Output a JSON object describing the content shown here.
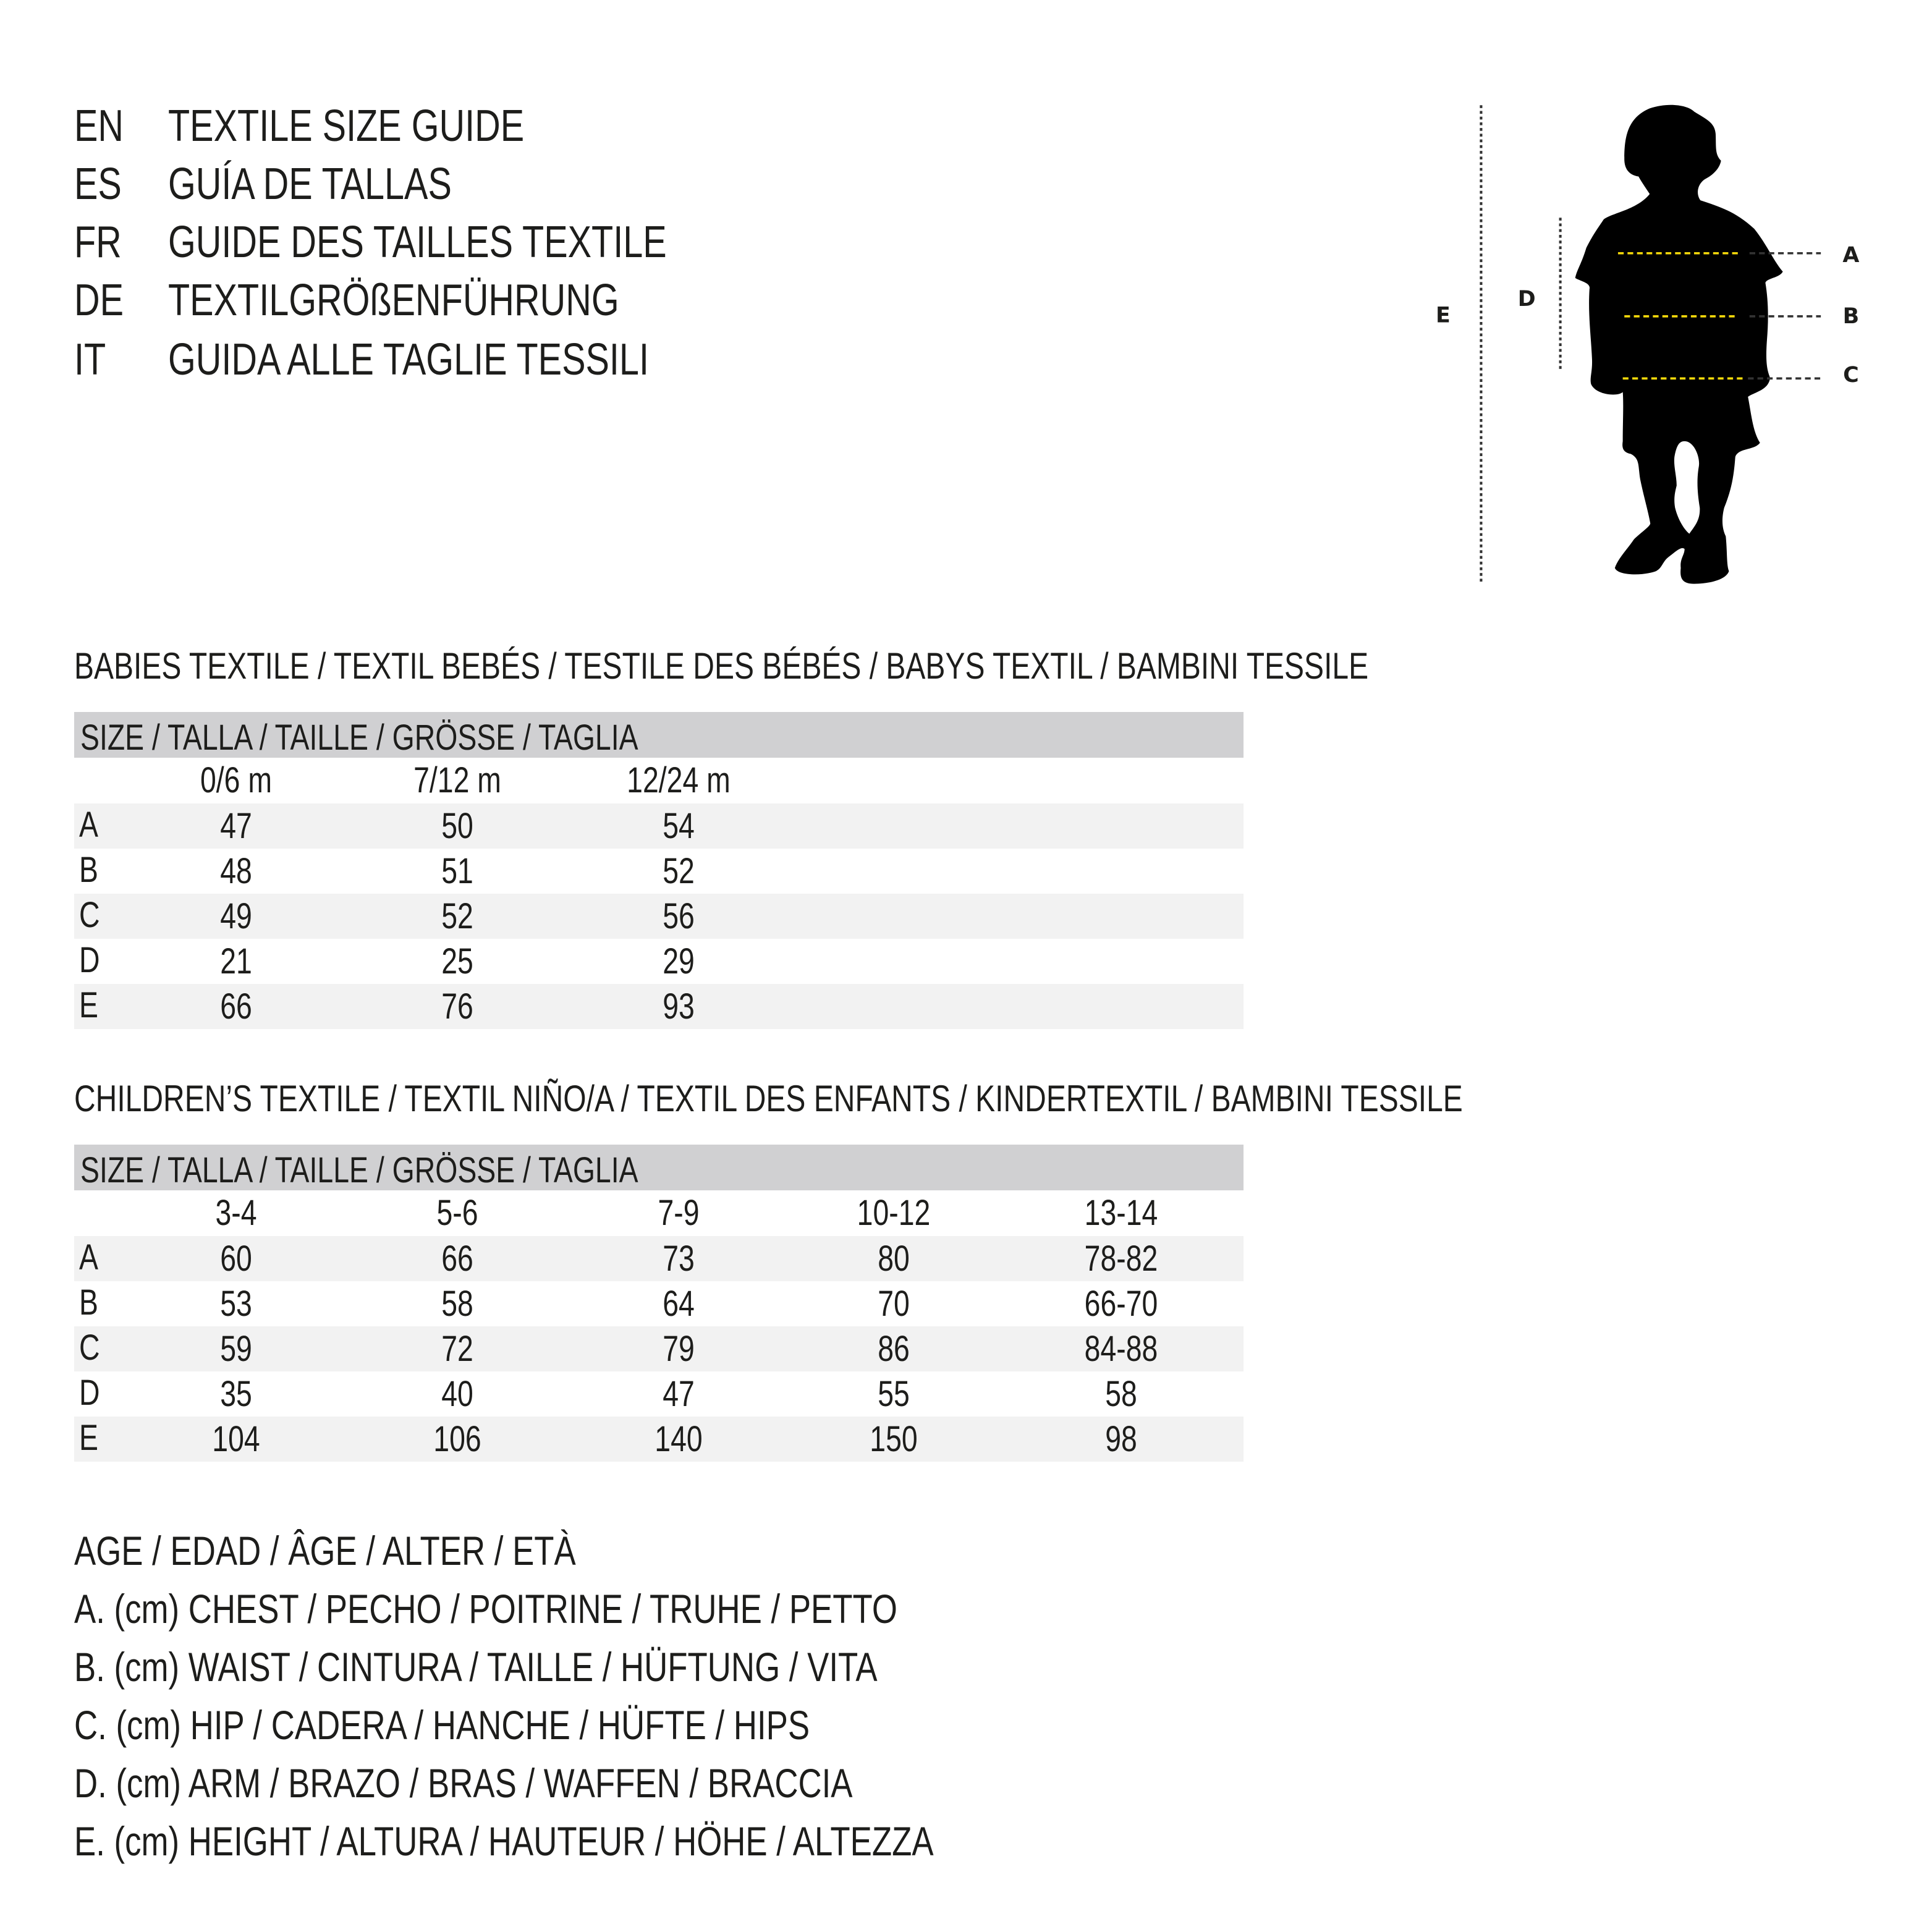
{
  "titles": [
    {
      "code": "EN",
      "text": "TEXTILE SIZE GUIDE"
    },
    {
      "code": "ES",
      "text": "GUÍA DE TALLAS"
    },
    {
      "code": "FR",
      "text": "GUIDE DES TAILLES TEXTILE"
    },
    {
      "code": "DE",
      "text": "TEXTILGRÖßENFÜHRUNG"
    },
    {
      "code": "IT",
      "text": "GUIDA ALLE TAGLIE TESSILI"
    }
  ],
  "figure": {
    "labels": {
      "a": "A",
      "b": "B",
      "c": "C",
      "d": "D",
      "e": "E"
    },
    "accent": "#f5d90a"
  },
  "babies": {
    "title": "BABIES TEXTILE / TEXTIL BEBÉS / TESTILE DES BÉBÉS / BABYS TEXTIL / BAMBINI TESSILE",
    "size_header": "SIZE / TALLA / TAILLE / GRÖSSE / TAGLIA",
    "columns": [
      "0/6 m",
      "7/12 m",
      "12/24 m"
    ],
    "rows": [
      {
        "label": "A",
        "values": [
          "47",
          "50",
          "54"
        ]
      },
      {
        "label": "B",
        "values": [
          "48",
          "51",
          "52"
        ]
      },
      {
        "label": "C",
        "values": [
          "49",
          "52",
          "56"
        ]
      },
      {
        "label": "D",
        "values": [
          "21",
          "25",
          "29"
        ]
      },
      {
        "label": "E",
        "values": [
          "66",
          "76",
          "93"
        ]
      }
    ]
  },
  "children": {
    "title": "CHILDREN’S TEXTILE / TEXTIL NIÑO/A / TEXTIL DES ENFANTS / KINDERTEXTIL / BAMBINI TESSILE",
    "size_header": "SIZE / TALLA / TAILLE / GRÖSSE / TAGLIA",
    "columns": [
      "3-4",
      "5-6",
      "7-9",
      "10-12",
      "13-14"
    ],
    "rows": [
      {
        "label": "A",
        "values": [
          "60",
          "66",
          "73",
          "80",
          "78-82"
        ]
      },
      {
        "label": "B",
        "values": [
          "53",
          "58",
          "64",
          "70",
          "66-70"
        ]
      },
      {
        "label": "C",
        "values": [
          "59",
          "72",
          "79",
          "86",
          "84-88"
        ]
      },
      {
        "label": "D",
        "values": [
          "35",
          "40",
          "47",
          "55",
          "58"
        ]
      },
      {
        "label": "E",
        "values": [
          "104",
          "106",
          "140",
          "150",
          "98"
        ]
      }
    ]
  },
  "legend": [
    "AGE / EDAD / ÂGE / ALTER / ETÀ",
    "A. (cm) CHEST / PECHO / POITRINE / TRUHE / PETTO",
    "B. (cm) WAIST / CINTURA / TAILLE / HÜFTUNG / VITA",
    "C. (cm) HIP / CADERA / HANCHE / HÜFTE / HIPS",
    "D. (cm) ARM / BRAZO / BRAS / WAFFEN / BRACCIA",
    "E. (cm) HEIGHT / ALTURA / HAUTEUR / HÖHE / ALTEZZA"
  ]
}
